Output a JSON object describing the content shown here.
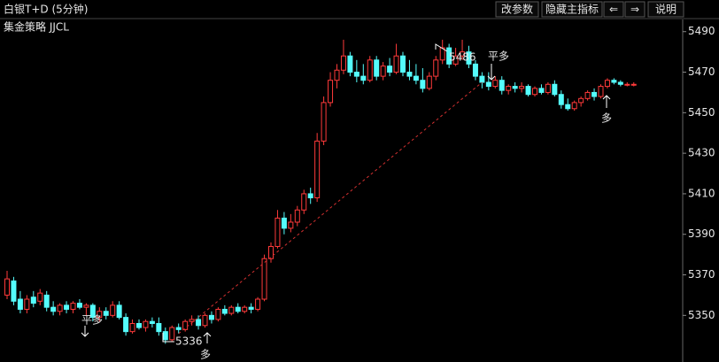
{
  "header": {
    "title": "白银T+D (5分钟)",
    "buttons": [
      "改参数",
      "隐藏主指标",
      "⇐",
      "⇒",
      "说明"
    ]
  },
  "chart_data": {
    "type": "candlestick",
    "indicator": "集金策略 JJCL",
    "up_color": "#ff3a3a",
    "down_color": "#54fcfc",
    "ylim": [
      5327,
      5496
    ],
    "yticks": [
      5350,
      5370,
      5390,
      5410,
      5430,
      5450,
      5470,
      5490
    ],
    "open": [
      5360,
      5367,
      5358,
      5353,
      5359,
      5357,
      5360,
      5354,
      5352,
      5355,
      5353,
      5356,
      5354,
      5355,
      5349,
      5352,
      5350,
      5355,
      5349,
      5342,
      5346,
      5344,
      5347,
      5346,
      5342,
      5338,
      5344,
      5343,
      5347,
      5348,
      5345,
      5350,
      5348,
      5353,
      5351,
      5354,
      5352,
      5354,
      5353,
      5358,
      5378,
      5384,
      5398,
      5393,
      5396,
      5402,
      5410,
      5408,
      5436,
      5455,
      5466,
      5471,
      5478,
      5470,
      5468,
      5466,
      5476,
      5468,
      5473,
      5470,
      5478,
      5470,
      5468,
      5466,
      5462,
      5468,
      5476,
      5482,
      5474,
      5478,
      5480,
      5474,
      5468,
      5465,
      5463,
      5466,
      5461,
      5463,
      5462,
      5463,
      5459,
      5462,
      5460,
      5464,
      5459,
      5454,
      5452,
      5455,
      5457,
      5460,
      5458,
      5463,
      5466,
      5465,
      5464,
      5464
    ],
    "high": [
      5372,
      5369,
      5362,
      5360,
      5362,
      5363,
      5362,
      5357,
      5356,
      5357,
      5357,
      5358,
      5356,
      5356,
      5354,
      5354,
      5357,
      5357,
      5351,
      5348,
      5348,
      5348,
      5349,
      5349,
      5344,
      5345,
      5346,
      5348,
      5350,
      5350,
      5351,
      5352,
      5354,
      5355,
      5355,
      5356,
      5355,
      5356,
      5359,
      5380,
      5386,
      5402,
      5401,
      5400,
      5404,
      5412,
      5413,
      5440,
      5458,
      5470,
      5474,
      5486,
      5480,
      5476,
      5474,
      5478,
      5478,
      5475,
      5477,
      5484,
      5480,
      5476,
      5474,
      5472,
      5470,
      5478,
      5486,
      5484,
      5482,
      5486,
      5483,
      5476,
      5470,
      5470,
      5468,
      5468,
      5464,
      5465,
      5465,
      5464,
      5463,
      5464,
      5465,
      5466,
      5461,
      5457,
      5456,
      5458,
      5461,
      5462,
      5464,
      5467,
      5467,
      5466,
      5465,
      5465
    ],
    "low": [
      5358,
      5355,
      5351,
      5351,
      5354,
      5355,
      5352,
      5350,
      5350,
      5351,
      5351,
      5353,
      5350,
      5347,
      5347,
      5348,
      5349,
      5348,
      5340,
      5341,
      5343,
      5342,
      5344,
      5340,
      5336,
      5337,
      5341,
      5342,
      5345,
      5343,
      5344,
      5346,
      5347,
      5350,
      5350,
      5351,
      5351,
      5351,
      5352,
      5357,
      5376,
      5383,
      5390,
      5391,
      5394,
      5400,
      5405,
      5406,
      5434,
      5453,
      5462,
      5469,
      5468,
      5465,
      5464,
      5465,
      5466,
      5466,
      5468,
      5469,
      5468,
      5466,
      5464,
      5460,
      5461,
      5466,
      5474,
      5472,
      5473,
      5476,
      5472,
      5466,
      5462,
      5461,
      5462,
      5459,
      5459,
      5460,
      5460,
      5458,
      5458,
      5459,
      5459,
      5458,
      5452,
      5451,
      5451,
      5453,
      5456,
      5456,
      5457,
      5462,
      5464,
      5463,
      5463,
      5463
    ],
    "close": [
      5368,
      5357,
      5353,
      5358,
      5356,
      5361,
      5354,
      5352,
      5355,
      5353,
      5356,
      5354,
      5355,
      5349,
      5352,
      5350,
      5355,
      5349,
      5342,
      5346,
      5344,
      5347,
      5346,
      5342,
      5338,
      5344,
      5343,
      5347,
      5348,
      5345,
      5350,
      5348,
      5353,
      5351,
      5354,
      5352,
      5354,
      5353,
      5358,
      5378,
      5384,
      5398,
      5393,
      5396,
      5402,
      5410,
      5408,
      5436,
      5455,
      5466,
      5471,
      5478,
      5470,
      5468,
      5466,
      5476,
      5468,
      5473,
      5470,
      5478,
      5470,
      5468,
      5466,
      5462,
      5468,
      5476,
      5482,
      5474,
      5478,
      5480,
      5474,
      5468,
      5465,
      5463,
      5466,
      5461,
      5463,
      5462,
      5463,
      5459,
      5462,
      5460,
      5464,
      5459,
      5454,
      5452,
      5455,
      5457,
      5460,
      5458,
      5463,
      5466,
      5465,
      5464,
      5464,
      5464
    ],
    "signal_line": {
      "x": [
        26,
        72
      ],
      "y": [
        5341,
        5465
      ]
    },
    "annotations": [
      "平多",
      "5336",
      "多",
      "5486",
      "平多",
      "多"
    ]
  }
}
